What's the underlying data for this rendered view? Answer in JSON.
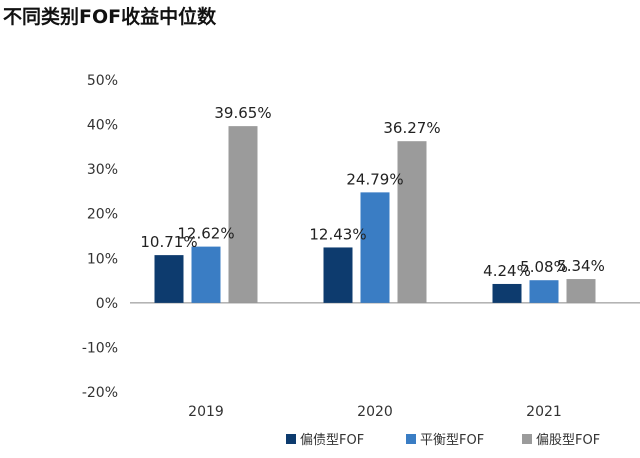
{
  "page_title": "不同类别FOF收益中位数",
  "colors": {
    "series_1": "#0d3b6e",
    "series_2": "#3a7dc4",
    "series_3": "#9b9b9b",
    "axis": "#888888",
    "grid": "#d9d9d9"
  },
  "chart_data": {
    "type": "bar",
    "title": "不同类别FOF收益中位数",
    "xlabel": "",
    "ylabel": "",
    "categories": [
      "2019",
      "2020",
      "2021"
    ],
    "series": [
      {
        "name": "偏债型FOF",
        "values": [
          10.71,
          12.43,
          4.24
        ],
        "labels": [
          "10.71%",
          "12.43%",
          "4.24%"
        ]
      },
      {
        "name": "平衡型FOF",
        "values": [
          12.62,
          24.79,
          5.08
        ],
        "labels": [
          "12.62%",
          "24.79%",
          "5.08%"
        ]
      },
      {
        "name": "偏股型FOF",
        "values": [
          39.65,
          36.27,
          5.34
        ],
        "labels": [
          "39.65%",
          "36.27%",
          "5.34%"
        ]
      }
    ],
    "ylim": [
      -20,
      50
    ],
    "yticks": [
      50,
      40,
      30,
      20,
      10,
      0,
      -10,
      -20
    ],
    "ytick_labels": [
      "50%",
      "40%",
      "30%",
      "20%",
      "10%",
      "0%",
      "-10%",
      "-20%"
    ],
    "legend_position": "bottom-right",
    "grid": false
  }
}
